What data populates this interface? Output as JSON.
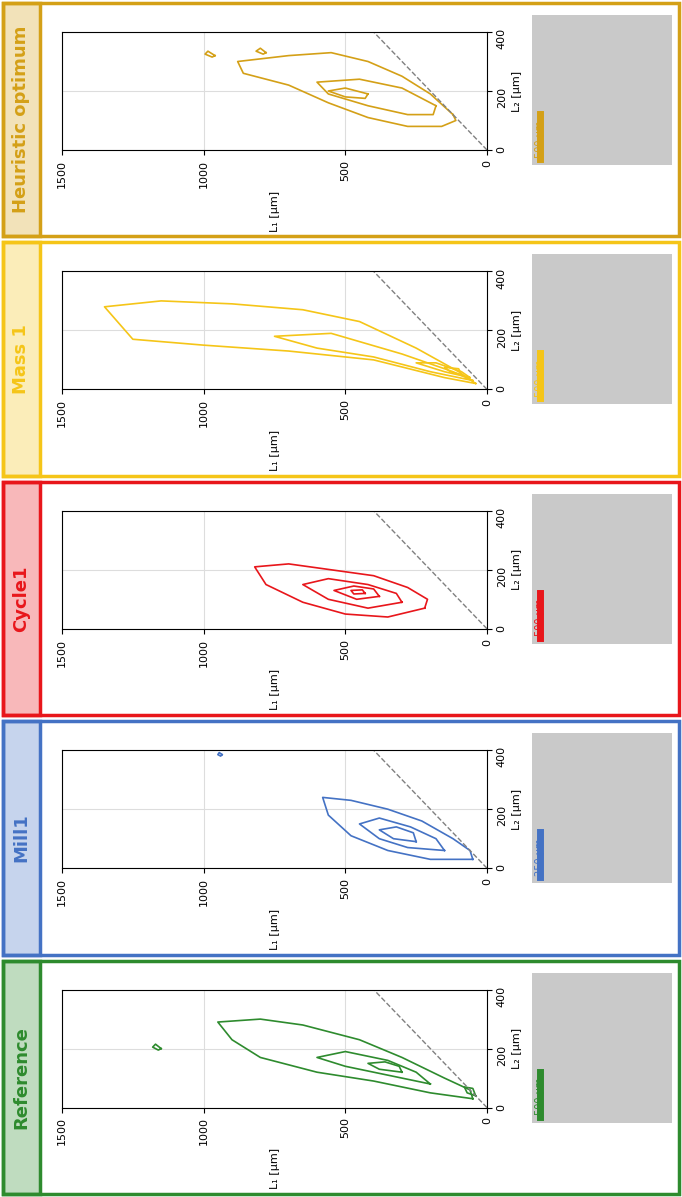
{
  "chart_data": [
    {
      "type": "contour",
      "title": "Heuristic optimum",
      "color": "#d4a017",
      "xlabel": "L₁ [µm]",
      "ylabel": "L₂ [µm]",
      "xlim": [
        1500,
        0
      ],
      "ylim": [
        0,
        400
      ],
      "xticks": [
        1500,
        1000,
        500,
        0
      ],
      "yticks": [
        0,
        200,
        400
      ],
      "grid": true,
      "scale_bar": "500 µm",
      "lines": [
        {
          "x": [
            0,
            400
          ],
          "y": [
            0,
            400
          ],
          "line_style": "dashed",
          "color": "#808080"
        }
      ],
      "contours": [
        [
          [
            120,
            120
          ],
          [
            200,
            190
          ],
          [
            300,
            250
          ],
          [
            420,
            300
          ],
          [
            550,
            330
          ],
          [
            700,
            320
          ],
          [
            880,
            300
          ],
          [
            860,
            260
          ],
          [
            700,
            220
          ],
          [
            560,
            160
          ],
          [
            420,
            110
          ],
          [
            280,
            80
          ],
          [
            160,
            80
          ],
          [
            110,
            100
          ]
        ],
        [
          [
            180,
            150
          ],
          [
            300,
            210
          ],
          [
            450,
            240
          ],
          [
            600,
            230
          ],
          [
            560,
            190
          ],
          [
            420,
            150
          ],
          [
            280,
            120
          ],
          [
            190,
            120
          ]
        ],
        [
          [
            420,
            190
          ],
          [
            500,
            210
          ],
          [
            560,
            200
          ],
          [
            500,
            180
          ],
          [
            430,
            175
          ]
        ],
        [
          [
            960,
            320
          ],
          [
            985,
            335
          ],
          [
            995,
            325
          ],
          [
            970,
            315
          ]
        ],
        [
          [
            780,
            330
          ],
          [
            800,
            345
          ],
          [
            815,
            335
          ],
          [
            790,
            325
          ]
        ]
      ]
    },
    {
      "type": "contour",
      "title": "Mass 1",
      "color": "#f5c518",
      "xlabel": "L₁ [µm]",
      "ylabel": "L₂ [µm]",
      "xlim": [
        1500,
        0
      ],
      "ylim": [
        0,
        400
      ],
      "xticks": [
        1500,
        1000,
        500,
        0
      ],
      "yticks": [
        0,
        200,
        400
      ],
      "grid": true,
      "scale_bar": "500 µm",
      "lines": [
        {
          "x": [
            0,
            400
          ],
          "y": [
            0,
            400
          ],
          "line_style": "dashed",
          "color": "#808080"
        }
      ],
      "contours": [
        [
          [
            40,
            20
          ],
          [
            150,
            40
          ],
          [
            400,
            100
          ],
          [
            700,
            130
          ],
          [
            1000,
            150
          ],
          [
            1250,
            170
          ],
          [
            1350,
            280
          ],
          [
            1150,
            300
          ],
          [
            900,
            290
          ],
          [
            650,
            270
          ],
          [
            450,
            230
          ],
          [
            250,
            140
          ],
          [
            100,
            60
          ]
        ],
        [
          [
            50,
            30
          ],
          [
            200,
            60
          ],
          [
            400,
            110
          ],
          [
            600,
            140
          ],
          [
            750,
            180
          ],
          [
            550,
            190
          ],
          [
            300,
            120
          ],
          [
            120,
            60
          ]
        ],
        [
          [
            60,
            40
          ],
          [
            150,
            60
          ],
          [
            250,
            90
          ],
          [
            180,
            90
          ],
          [
            90,
            60
          ]
        ],
        [
          [
            90,
            50
          ],
          [
            130,
            60
          ],
          [
            150,
            75
          ],
          [
            100,
            70
          ]
        ]
      ]
    },
    {
      "type": "contour",
      "title": "Cycle1",
      "color": "#e8161b",
      "xlabel": "L₁ [µm]",
      "ylabel": "L₂ [µm]",
      "xlim": [
        1500,
        0
      ],
      "ylim": [
        0,
        400
      ],
      "xticks": [
        1500,
        1000,
        500,
        0
      ],
      "yticks": [
        0,
        200,
        400
      ],
      "grid": true,
      "scale_bar": "500 µm",
      "lines": [
        {
          "x": [
            0,
            400
          ],
          "y": [
            0,
            400
          ],
          "line_style": "dashed",
          "color": "#808080"
        }
      ],
      "contours": [
        [
          [
            220,
            70
          ],
          [
            350,
            40
          ],
          [
            500,
            50
          ],
          [
            650,
            90
          ],
          [
            780,
            150
          ],
          [
            820,
            210
          ],
          [
            700,
            220
          ],
          [
            550,
            200
          ],
          [
            400,
            180
          ],
          [
            280,
            140
          ],
          [
            210,
            100
          ]
        ],
        [
          [
            300,
            90
          ],
          [
            420,
            70
          ],
          [
            560,
            100
          ],
          [
            650,
            150
          ],
          [
            560,
            170
          ],
          [
            420,
            150
          ],
          [
            320,
            120
          ]
        ],
        [
          [
            380,
            110
          ],
          [
            460,
            100
          ],
          [
            540,
            130
          ],
          [
            470,
            145
          ],
          [
            400,
            135
          ]
        ],
        [
          [
            430,
            120
          ],
          [
            470,
            118
          ],
          [
            480,
            130
          ],
          [
            440,
            132
          ]
        ]
      ]
    },
    {
      "type": "contour",
      "title": "Mill1",
      "color": "#4472c4",
      "xlabel": "L₁ [µm]",
      "ylabel": "L₂ [µm]",
      "xlim": [
        1500,
        0
      ],
      "ylim": [
        0,
        400
      ],
      "xticks": [
        1500,
        1000,
        500,
        0
      ],
      "yticks": [
        0,
        200,
        400
      ],
      "grid": true,
      "scale_bar": "250 µm",
      "lines": [
        {
          "x": [
            0,
            400
          ],
          "y": [
            0,
            400
          ],
          "line_style": "dashed",
          "color": "#808080"
        }
      ],
      "contours": [
        [
          [
            50,
            30
          ],
          [
            200,
            30
          ],
          [
            350,
            60
          ],
          [
            480,
            110
          ],
          [
            560,
            180
          ],
          [
            580,
            240
          ],
          [
            480,
            230
          ],
          [
            350,
            200
          ],
          [
            230,
            160
          ],
          [
            120,
            100
          ],
          [
            60,
            60
          ]
        ],
        [
          [
            150,
            60
          ],
          [
            280,
            70
          ],
          [
            380,
            100
          ],
          [
            450,
            150
          ],
          [
            380,
            170
          ],
          [
            270,
            140
          ],
          [
            180,
            100
          ]
        ],
        [
          [
            250,
            90
          ],
          [
            330,
            100
          ],
          [
            380,
            130
          ],
          [
            320,
            140
          ],
          [
            260,
            120
          ]
        ],
        [
          [
            935,
            385
          ],
          [
            945,
            392
          ],
          [
            950,
            385
          ],
          [
            940,
            380
          ]
        ]
      ]
    },
    {
      "type": "contour",
      "title": "Reference",
      "color": "#2e8b2e",
      "xlabel": "L₁ [µm]",
      "ylabel": "L₂ [µm]",
      "xlim": [
        1500,
        0
      ],
      "ylim": [
        0,
        400
      ],
      "xticks": [
        1500,
        1000,
        500,
        0
      ],
      "yticks": [
        0,
        200,
        400
      ],
      "grid": true,
      "scale_bar": "500 µm",
      "lines": [
        {
          "x": [
            0,
            400
          ],
          "y": [
            0,
            400
          ],
          "line_style": "dashed",
          "color": "#808080"
        }
      ],
      "contours": [
        [
          [
            50,
            30
          ],
          [
            200,
            50
          ],
          [
            400,
            90
          ],
          [
            600,
            120
          ],
          [
            800,
            170
          ],
          [
            900,
            230
          ],
          [
            950,
            290
          ],
          [
            800,
            300
          ],
          [
            650,
            280
          ],
          [
            450,
            230
          ],
          [
            300,
            170
          ],
          [
            150,
            100
          ],
          [
            60,
            60
          ]
        ],
        [
          [
            200,
            80
          ],
          [
            350,
            110
          ],
          [
            500,
            140
          ],
          [
            600,
            170
          ],
          [
            500,
            190
          ],
          [
            350,
            160
          ],
          [
            250,
            120
          ]
        ],
        [
          [
            300,
            120
          ],
          [
            380,
            130
          ],
          [
            420,
            150
          ],
          [
            360,
            155
          ],
          [
            310,
            140
          ]
        ],
        [
          [
            40,
            40
          ],
          [
            70,
            50
          ],
          [
            80,
            70
          ],
          [
            50,
            65
          ]
        ],
        [
          [
            1150,
            200
          ],
          [
            1170,
            215
          ],
          [
            1180,
            205
          ],
          [
            1160,
            195
          ]
        ]
      ]
    }
  ]
}
